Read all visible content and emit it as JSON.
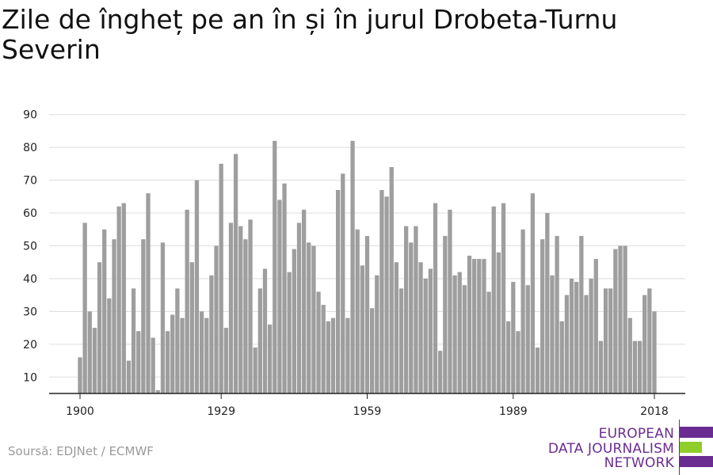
{
  "header": {
    "title": "Zile de îngheț pe an în și în jurul Drobeta-Turnu Severin"
  },
  "source": "Soursă: EDJNet / ECMWF",
  "logo": {
    "line1": "EUROPEAN",
    "line2": "DATA JOURNALISM",
    "line3": "NETWORK"
  },
  "colors": {
    "bar": "#9e9e9e",
    "grid": "#dddddd",
    "axis": "#222222",
    "logo_purple": "#6b2c91",
    "logo_green": "#8fce2a"
  },
  "chart_data": {
    "type": "bar",
    "title": "Zile de îngheț pe an în și în jurul Drobeta-Turnu Severin",
    "xlabel": "",
    "ylabel": "",
    "ylim": [
      5,
      90
    ],
    "yticks": [
      10,
      20,
      30,
      40,
      50,
      60,
      70,
      80,
      90
    ],
    "xtick_labels": [
      "1900",
      "1929",
      "1959",
      "1989",
      "2018"
    ],
    "grid": true,
    "legend": "none",
    "start_year": 1900,
    "end_year": 2018,
    "x": [
      1900,
      1901,
      1902,
      1903,
      1904,
      1905,
      1906,
      1907,
      1908,
      1909,
      1910,
      1911,
      1912,
      1913,
      1914,
      1915,
      1916,
      1917,
      1918,
      1919,
      1920,
      1921,
      1922,
      1923,
      1924,
      1925,
      1926,
      1927,
      1928,
      1929,
      1930,
      1931,
      1932,
      1933,
      1934,
      1935,
      1936,
      1937,
      1938,
      1939,
      1940,
      1941,
      1942,
      1943,
      1944,
      1945,
      1946,
      1947,
      1948,
      1949,
      1950,
      1951,
      1952,
      1953,
      1954,
      1955,
      1956,
      1957,
      1958,
      1959,
      1960,
      1961,
      1962,
      1963,
      1964,
      1965,
      1966,
      1967,
      1968,
      1969,
      1970,
      1971,
      1972,
      1973,
      1974,
      1975,
      1976,
      1977,
      1978,
      1979,
      1980,
      1981,
      1982,
      1983,
      1984,
      1985,
      1986,
      1987,
      1988,
      1989,
      1990,
      1991,
      1992,
      1993,
      1994,
      1995,
      1996,
      1997,
      1998,
      1999,
      2000,
      2001,
      2002,
      2003,
      2004,
      2005,
      2006,
      2007,
      2008,
      2009,
      2010,
      2011,
      2012,
      2013,
      2014,
      2015,
      2016,
      2017,
      2018
    ],
    "values": [
      16,
      57,
      30,
      25,
      45,
      55,
      34,
      52,
      62,
      63,
      15,
      37,
      24,
      52,
      66,
      22,
      6,
      51,
      24,
      29,
      37,
      28,
      61,
      45,
      70,
      30,
      28,
      41,
      50,
      75,
      25,
      57,
      78,
      56,
      52,
      58,
      19,
      37,
      43,
      26,
      82,
      64,
      69,
      42,
      49,
      57,
      61,
      51,
      50,
      36,
      32,
      27,
      28,
      67,
      72,
      28,
      82,
      55,
      44,
      53,
      31,
      41,
      67,
      65,
      74,
      45,
      37,
      56,
      51,
      56,
      45,
      40,
      43,
      63,
      18,
      53,
      61,
      41,
      42,
      38,
      47,
      46,
      46,
      46,
      36,
      62,
      48,
      63,
      27,
      39,
      24,
      55,
      38,
      66,
      19,
      52,
      60,
      41,
      53,
      27,
      35,
      40,
      39,
      53,
      35,
      40,
      46,
      21,
      37,
      37,
      49,
      50,
      50,
      28,
      21,
      21,
      35,
      37,
      30
    ]
  }
}
